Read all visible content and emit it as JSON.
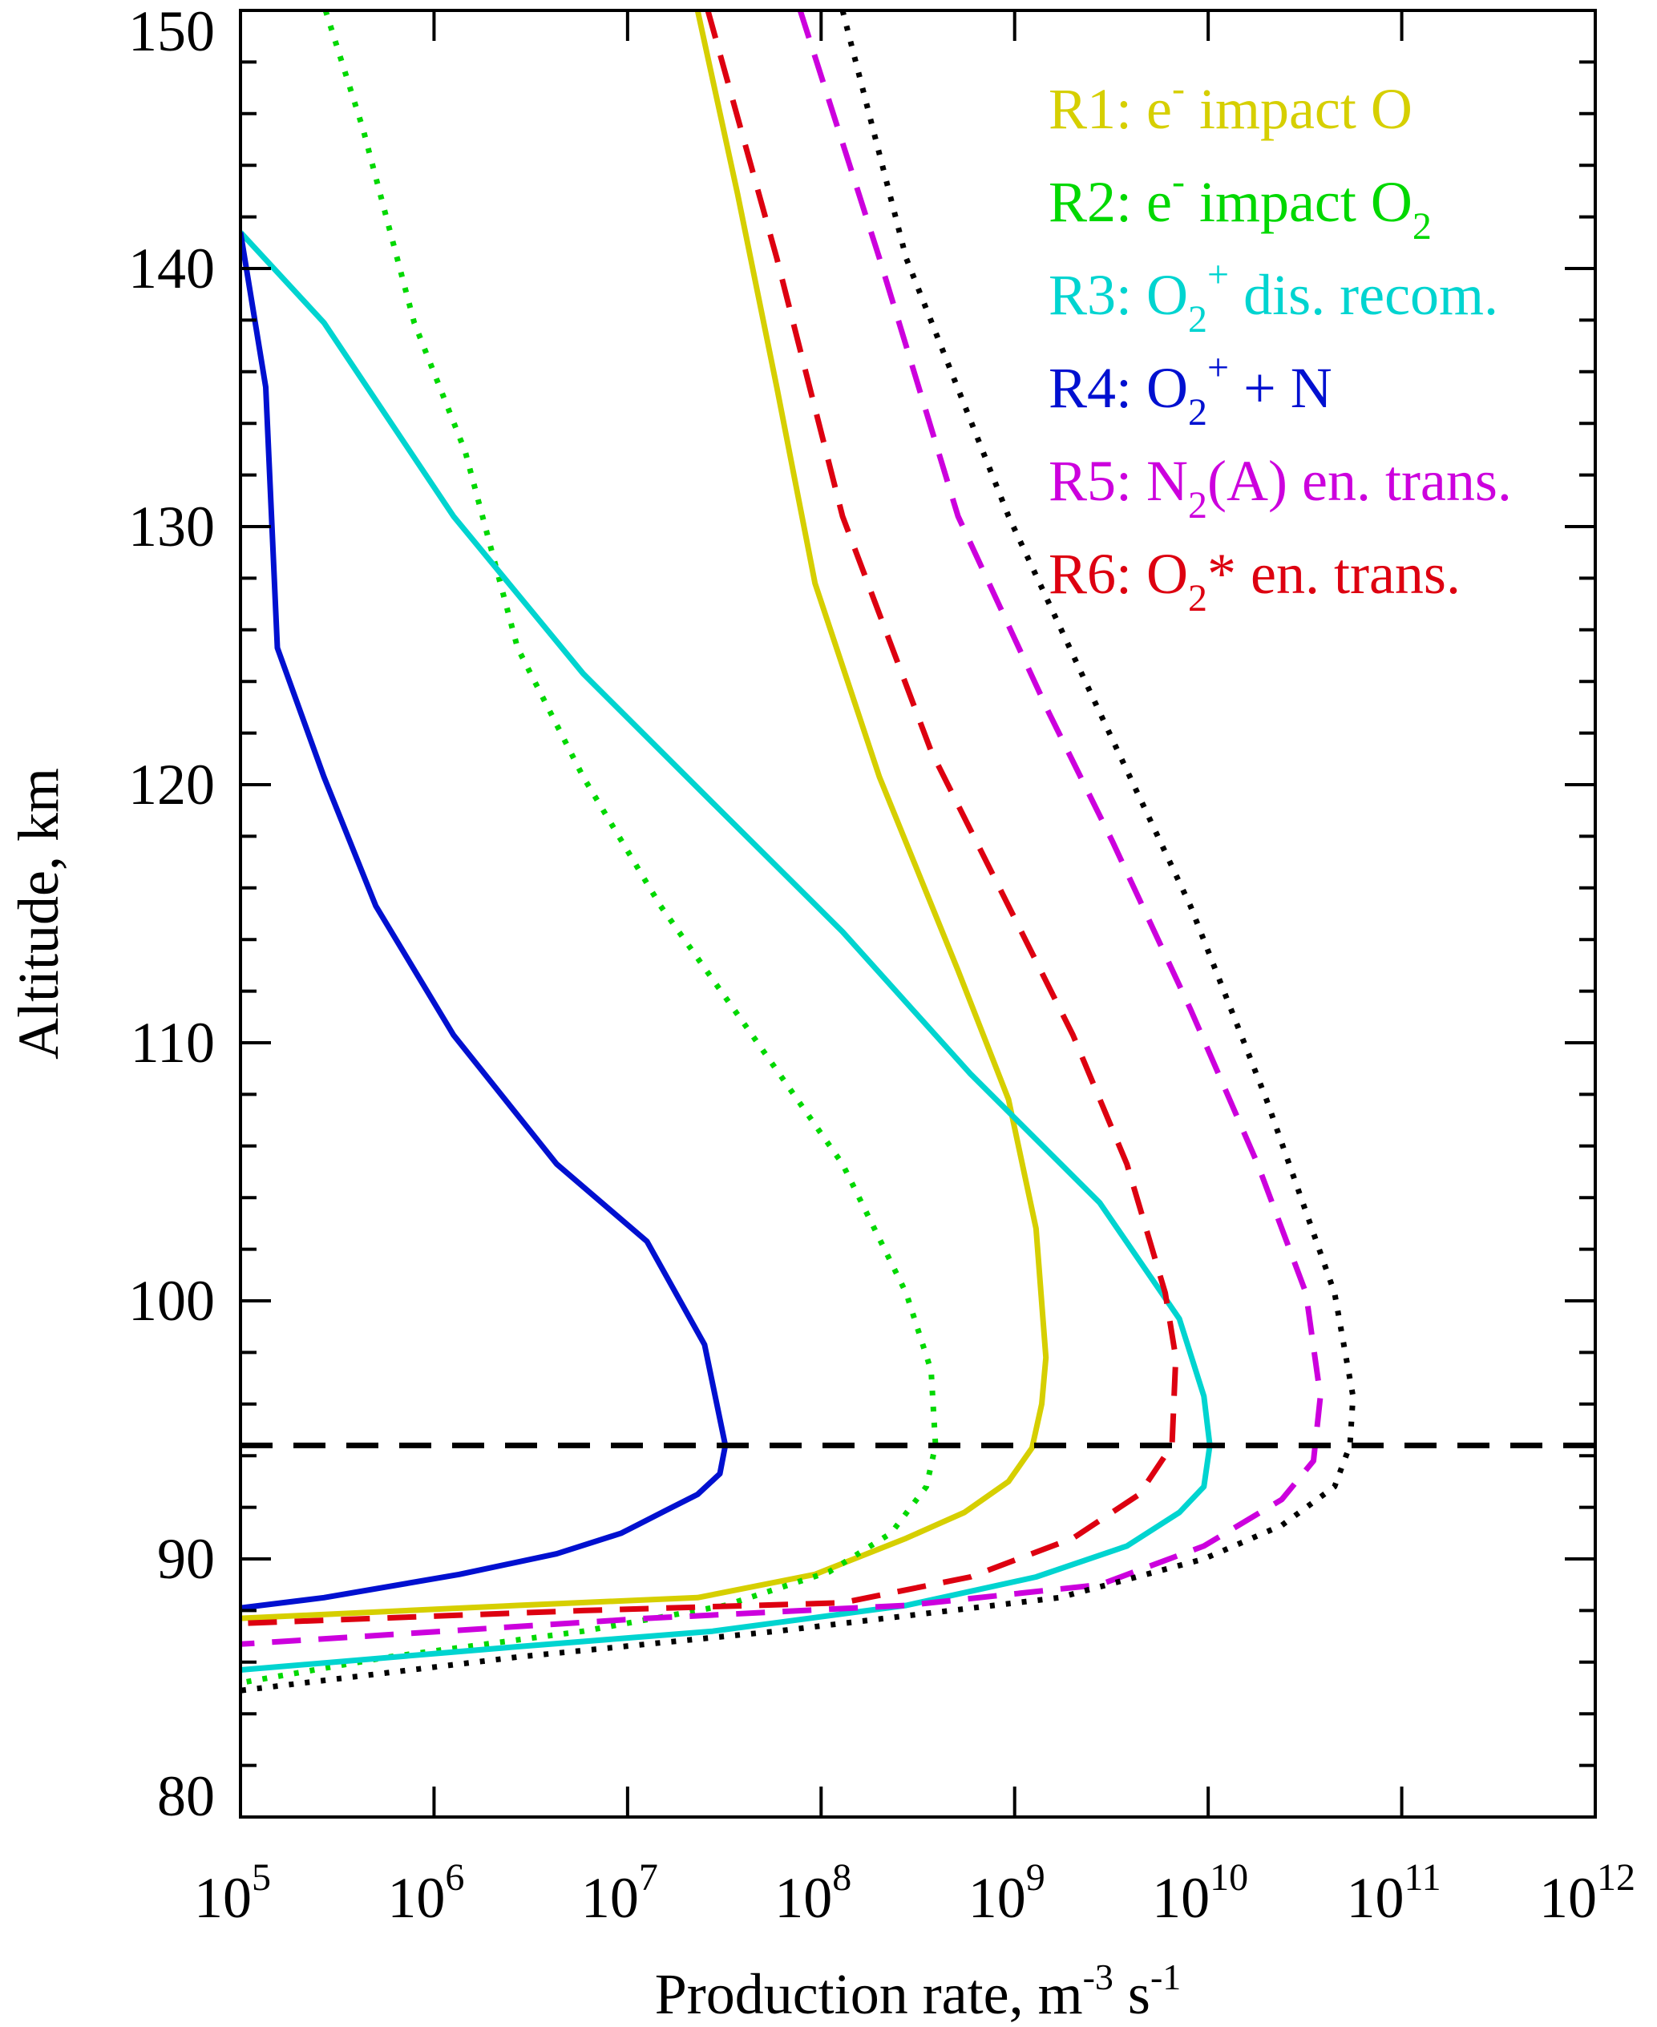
{
  "chart_data": {
    "type": "line",
    "xlabel": {
      "base": "Production rate, m",
      "sup1": "-3",
      "mid": " s",
      "sup2": "-1"
    },
    "ylabel": "Altitude, km",
    "xscale": "log",
    "xlim": [
      100000.0,
      1000000000000.0
    ],
    "ylim": [
      80,
      150
    ],
    "grid": false,
    "legend_placement": "top-right",
    "xticks": [
      {
        "base": "10",
        "exp": "5"
      },
      {
        "base": "10",
        "exp": "6"
      },
      {
        "base": "10",
        "exp": "7"
      },
      {
        "base": "10",
        "exp": "8"
      },
      {
        "base": "10",
        "exp": "9"
      },
      {
        "base": "10",
        "exp": "10"
      },
      {
        "base": "10",
        "exp": "11"
      },
      {
        "base": "10",
        "exp": "12"
      }
    ],
    "yticks": [
      "80",
      "90",
      "100",
      "110",
      "120",
      "130",
      "140",
      "150"
    ],
    "reference_line": {
      "altitude": 94.4,
      "color": "#000000",
      "style": "dashed"
    },
    "series": [
      {
        "name": "R1: e- impact O",
        "legend": [
          {
            "t": "R1: e"
          },
          {
            "sup": "-"
          },
          {
            "t": " impact O"
          }
        ],
        "color": "#d6cf00",
        "style": "solid",
        "points": [
          [
            23000000.0,
            150
          ],
          [
            37000000.0,
            142.9
          ],
          [
            59000000.0,
            135.4
          ],
          [
            93000000.0,
            127.8
          ],
          [
            200000000.0,
            120.3
          ],
          [
            510000000.0,
            112.8
          ],
          [
            930000000.0,
            107.8
          ],
          [
            1290000000.0,
            102.8
          ],
          [
            1450000000.0,
            97.8
          ],
          [
            1380000000.0,
            96.0
          ],
          [
            1230000000.0,
            94.3
          ],
          [
            930000000.0,
            93.0
          ],
          [
            550000000.0,
            91.8
          ],
          [
            275000000.0,
            90.8
          ],
          [
            93000000.0,
            89.4
          ],
          [
            23000000.0,
            88.5
          ],
          [
            2700000.0,
            88.2
          ],
          [
            100000.0,
            87.7
          ]
        ]
      },
      {
        "name": "R2: e- impact O2",
        "legend": [
          {
            "t": "R2: e"
          },
          {
            "sup": "-"
          },
          {
            "t": " impact O"
          },
          {
            "sub": "2"
          }
        ],
        "color": "#00d800",
        "style": "dotted",
        "points": [
          [
            275000.0,
            150
          ],
          [
            430000.0,
            145.4
          ],
          [
            790000.0,
            137.9
          ],
          [
            1450000.0,
            132.9
          ],
          [
            2700000.0,
            125.3
          ],
          [
            5900000.0,
            120.3
          ],
          [
            14800000.0,
            115.3
          ],
          [
            44000000.0,
            110.3
          ],
          [
            129000000.0,
            105.3
          ],
          [
            275000000.0,
            100.3
          ],
          [
            370000000.0,
            97.3
          ],
          [
            390000000.0,
            94.4
          ],
          [
            350000000.0,
            92.8
          ],
          [
            230000000.0,
            91.0
          ],
          [
            110000000.0,
            89.5
          ],
          [
            32000000.0,
            88.2
          ],
          [
            5900000.0,
            87.2
          ],
          [
            580000.0,
            86.2
          ],
          [
            100000.0,
            85.2
          ]
        ]
      },
      {
        "name": "R3: O2+ dis. recom.",
        "legend": [
          {
            "t": "R3: O"
          },
          {
            "sub": "2"
          },
          {
            "sup": "+"
          },
          {
            "t": " dis. recom."
          }
        ],
        "color": "#00d4d0",
        "style": "solid",
        "points": [
          [
            100000.0,
            141.4
          ],
          [
            270000.0,
            137.9
          ],
          [
            1260000.0,
            130.4
          ],
          [
            5900000.0,
            124.3
          ],
          [
            27500000.0,
            119.3
          ],
          [
            129000000.0,
            114.3
          ],
          [
            590000000.0,
            108.8
          ],
          [
            2750000000.0,
            103.8
          ],
          [
            7100000000.0,
            99.3
          ],
          [
            9500000000.0,
            96.3
          ],
          [
            10200000000.0,
            94.4
          ],
          [
            9500000000.0,
            92.8
          ],
          [
            7100000000.0,
            91.8
          ],
          [
            3800000000.0,
            90.5
          ],
          [
            1290000000.0,
            89.3
          ],
          [
            275000000.0,
            88.2
          ],
          [
            27500000.0,
            87.2
          ],
          [
            2700000.0,
            86.6
          ],
          [
            100000.0,
            85.7
          ]
        ]
      },
      {
        "name": "R4: O2+ + N",
        "legend": [
          {
            "t": "R4: O"
          },
          {
            "sub": "2"
          },
          {
            "sup": "+"
          },
          {
            "t": " + N"
          }
        ],
        "color": "#0010d0",
        "style": "solid",
        "points": [
          [
            100000.0,
            141.4
          ],
          [
            135000.0,
            135.4
          ],
          [
            155000.0,
            125.3
          ],
          [
            270000.0,
            120.3
          ],
          [
            500000.0,
            115.3
          ],
          [
            1260000.0,
            110.3
          ],
          [
            4300000.0,
            105.3
          ],
          [
            12600000.0,
            102.3
          ],
          [
            25000000.0,
            98.3
          ],
          [
            32000000.0,
            94.4
          ],
          [
            30000000.0,
            93.3
          ],
          [
            23000000.0,
            92.5
          ],
          [
            16000000.0,
            91.9
          ],
          [
            9300000.0,
            91.0
          ],
          [
            4300000.0,
            90.2
          ],
          [
            1350000.0,
            89.4
          ],
          [
            270000.0,
            88.5
          ],
          [
            100000.0,
            88.1
          ]
        ]
      },
      {
        "name": "R5: N2(A) en. trans.",
        "legend": [
          {
            "t": "R5: N"
          },
          {
            "sub": "2"
          },
          {
            "t": "(A) en. trans."
          }
        ],
        "color": "#cc00dd",
        "style": "dashed",
        "points": [
          [
            78000000.0,
            150
          ],
          [
            200000000.0,
            140.4
          ],
          [
            510000000.0,
            130.4
          ],
          [
            1500000000.0,
            122.8
          ],
          [
            3200000000.0,
            117.8
          ],
          [
            8100000000.0,
            111.3
          ],
          [
            18000000000.0,
            105.3
          ],
          [
            32000000000.0,
            100.3
          ],
          [
            38000000000.0,
            96.3
          ],
          [
            35000000000.0,
            93.8
          ],
          [
            24000000000.0,
            92.3
          ],
          [
            9500000000.0,
            90.5
          ],
          [
            2750000000.0,
            89.0
          ],
          [
            275000000.0,
            88.2
          ],
          [
            12600000.0,
            87.7
          ],
          [
            100000.0,
            86.7
          ]
        ]
      },
      {
        "name": "R6: O2* en. trans.",
        "legend": [
          {
            "t": "R6: O"
          },
          {
            "sub": "2"
          },
          {
            "t": "* en. trans."
          }
        ],
        "color": "#dd0010",
        "style": "dashed",
        "points": [
          [
            26000000.0,
            150
          ],
          [
            59000000.0,
            140.4
          ],
          [
            129000000.0,
            130.4
          ],
          [
            370000000.0,
            121.3
          ],
          [
            930000000.0,
            115.3
          ],
          [
            2000000000.0,
            110.3
          ],
          [
            3800000000.0,
            105.3
          ],
          [
            6000000000.0,
            100.3
          ],
          [
            6800000000.0,
            97.8
          ],
          [
            6500000000.0,
            94.4
          ],
          [
            4400000000.0,
            92.5
          ],
          [
            2000000000.0,
            90.8
          ],
          [
            590000000.0,
            89.3
          ],
          [
            129000000.0,
            88.3
          ],
          [
            5900000.0,
            88.0
          ],
          [
            100000.0,
            87.5
          ]
        ]
      },
      {
        "color": "#000000",
        "style": "dotted",
        "points": [
          [
            129000000.0,
            150
          ],
          [
            275000000.0,
            140.4
          ],
          [
            930000000.0,
            130.4
          ],
          [
            2750000000.0,
            122.8
          ],
          [
            8100000000.0,
            115.3
          ],
          [
            20000000000.0,
            107.8
          ],
          [
            45000000000.0,
            100.3
          ],
          [
            56000000000.0,
            96.3
          ],
          [
            54000000000.0,
            94.4
          ],
          [
            45000000000.0,
            92.8
          ],
          [
            24000000000.0,
            91.3
          ],
          [
            9500000000.0,
            90.0
          ],
          [
            1700000000.0,
            88.5
          ],
          [
            59000000.0,
            87.2
          ],
          [
            2700000.0,
            86.2
          ],
          [
            100000.0,
            84.9
          ]
        ]
      }
    ]
  }
}
